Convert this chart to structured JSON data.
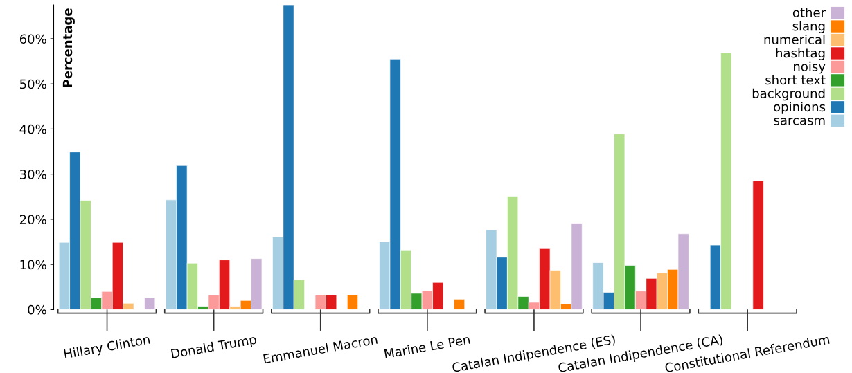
{
  "chart_data": {
    "type": "bar",
    "ylabel": "Percentage",
    "categories": [
      "Hillary Clinton",
      "Donald Trump",
      "Emmanuel Macron",
      "Marine Le Pen",
      "Catalan Indipendence (ES)",
      "Catalan Indipendence (CA)",
      "Constitutional Referendum"
    ],
    "series": [
      {
        "name": "sarcasm",
        "color": "#a6cee3",
        "values": [
          14.9,
          24.3,
          16.1,
          15.0,
          17.7,
          10.4,
          null
        ]
      },
      {
        "name": "opinions",
        "color": "#1f78b4",
        "values": [
          34.9,
          31.9,
          67.5,
          55.5,
          11.6,
          3.8,
          14.3
        ]
      },
      {
        "name": "background",
        "color": "#b2df8a",
        "values": [
          24.2,
          10.3,
          6.6,
          13.2,
          25.1,
          38.9,
          56.9
        ]
      },
      {
        "name": "short text",
        "color": "#33a02c",
        "values": [
          2.6,
          0.7,
          null,
          3.6,
          2.9,
          9.8,
          null
        ]
      },
      {
        "name": "noisy",
        "color": "#fb9a99",
        "values": [
          4.0,
          3.2,
          3.2,
          4.2,
          1.6,
          4.1,
          null
        ]
      },
      {
        "name": "hashtag",
        "color": "#e31a1c",
        "values": [
          14.9,
          11.0,
          3.2,
          6.0,
          13.5,
          6.9,
          28.5
        ]
      },
      {
        "name": "numerical",
        "color": "#fdbf6f",
        "values": [
          1.4,
          0.7,
          null,
          null,
          8.7,
          8.1,
          null
        ]
      },
      {
        "name": "slang",
        "color": "#ff7f00",
        "values": [
          null,
          2.0,
          3.2,
          2.3,
          1.3,
          8.9,
          null
        ]
      },
      {
        "name": "other",
        "color": "#cab2d6",
        "values": [
          2.6,
          11.3,
          null,
          null,
          19.1,
          16.8,
          null
        ]
      }
    ],
    "ylim": [
      0,
      67.5
    ],
    "yticks": [
      {
        "value": 0,
        "label": "0%"
      },
      {
        "value": 10,
        "label": "10%"
      },
      {
        "value": 20,
        "label": "20%"
      },
      {
        "value": 30,
        "label": "30%"
      },
      {
        "value": 40,
        "label": "40%"
      },
      {
        "value": 50,
        "label": "50%"
      },
      {
        "value": 60,
        "label": "60%"
      }
    ],
    "grid": false,
    "legend": "top right"
  }
}
